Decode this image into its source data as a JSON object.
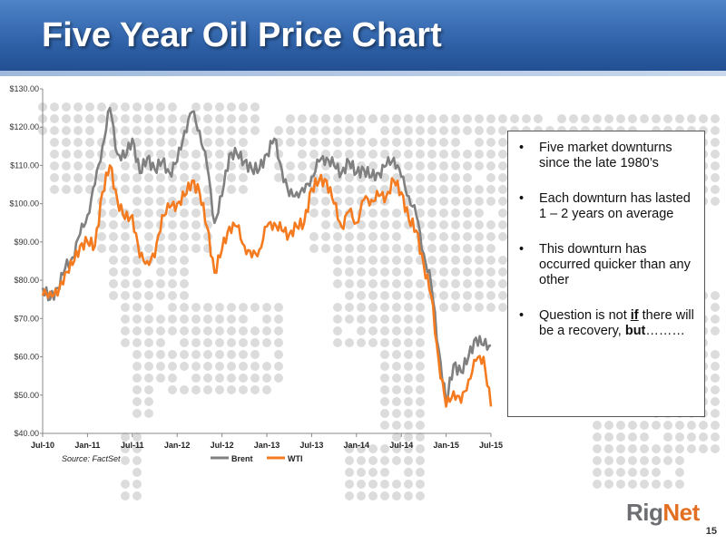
{
  "slide": {
    "title": "Five Year Oil Price Chart",
    "page_number": "15",
    "source": "Source:  FactSet",
    "logo": {
      "rig": "Rig",
      "net": "Net"
    }
  },
  "bullets": {
    "b1": "Five market downturns since the late 1980’s",
    "b2": "Each downturn has lasted 1 – 2 years on average",
    "b3": "This downturn has occurred quicker than any other",
    "b4_pre": "Question is not ",
    "b4_em": "if",
    "b4_mid": " there will be a recovery, ",
    "b4_bold": "but",
    "b4_end": "………"
  },
  "chart_data": {
    "type": "line",
    "title": "",
    "xlabel": "",
    "ylabel": "",
    "ylim": [
      40,
      130
    ],
    "y_ticks": [
      "$130.00",
      "$120.00",
      "$110.00",
      "$100.00",
      "$90.00",
      "$80.00",
      "$70.00",
      "$60.00",
      "$50.00",
      "$40.00"
    ],
    "x_ticks": [
      "Jul-10",
      "Jan-11",
      "Jul-11",
      "Jan-12",
      "Jul-12",
      "Jan-13",
      "Jul-13",
      "Jan-14",
      "Jul-14",
      "Jan-15",
      "Jul-15"
    ],
    "legend_position": "bottom",
    "series": [
      {
        "name": "Brent",
        "color": "#808080",
        "points": [
          [
            "Jul-10",
            78
          ],
          [
            "Aug-10",
            75
          ],
          [
            "Sep-10",
            78
          ],
          [
            "Oct-10",
            83
          ],
          [
            "Nov-10",
            86
          ],
          [
            "Dec-10",
            92
          ],
          [
            "Jan-11",
            97
          ],
          [
            "Feb-11",
            105
          ],
          [
            "Mar-11",
            115
          ],
          [
            "Apr-11",
            125
          ],
          [
            "May-11",
            113
          ],
          [
            "Jun-11",
            112
          ],
          [
            "Jul-11",
            117
          ],
          [
            "Aug-11",
            108
          ],
          [
            "Sep-11",
            112
          ],
          [
            "Oct-11",
            109
          ],
          [
            "Nov-11",
            111
          ],
          [
            "Dec-11",
            108
          ],
          [
            "Jan-12",
            111
          ],
          [
            "Feb-12",
            119
          ],
          [
            "Mar-12",
            124
          ],
          [
            "Apr-12",
            119
          ],
          [
            "May-12",
            110
          ],
          [
            "Jun-12",
            95
          ],
          [
            "Jul-12",
            102
          ],
          [
            "Aug-12",
            113
          ],
          [
            "Sep-12",
            113
          ],
          [
            "Oct-12",
            111
          ],
          [
            "Nov-12",
            109
          ],
          [
            "Dec-12",
            109
          ],
          [
            "Jan-13",
            113
          ],
          [
            "Feb-13",
            117
          ],
          [
            "Mar-13",
            109
          ],
          [
            "Apr-13",
            102
          ],
          [
            "May-13",
            103
          ],
          [
            "Jun-13",
            103
          ],
          [
            "Jul-13",
            107
          ],
          [
            "Aug-13",
            111
          ],
          [
            "Sep-13",
            112
          ],
          [
            "Oct-13",
            110
          ],
          [
            "Nov-13",
            108
          ],
          [
            "Dec-13",
            111
          ],
          [
            "Jan-14",
            108
          ],
          [
            "Feb-14",
            109
          ],
          [
            "Mar-14",
            107
          ],
          [
            "Apr-14",
            108
          ],
          [
            "May-14",
            110
          ],
          [
            "Jun-14",
            112
          ],
          [
            "Jul-14",
            107
          ],
          [
            "Aug-14",
            102
          ],
          [
            "Sep-14",
            97
          ],
          [
            "Oct-14",
            87
          ],
          [
            "Nov-14",
            79
          ],
          [
            "Dec-14",
            62
          ],
          [
            "Jan-15",
            48
          ],
          [
            "Feb-15",
            58
          ],
          [
            "Mar-15",
            56
          ],
          [
            "Apr-15",
            60
          ],
          [
            "May-15",
            65
          ],
          [
            "Jun-15",
            63
          ],
          [
            "Jul-15",
            63
          ]
        ]
      },
      {
        "name": "WTI",
        "color": "#f47b20",
        "points": [
          [
            "Jul-10",
            76
          ],
          [
            "Aug-10",
            77
          ],
          [
            "Sep-10",
            76
          ],
          [
            "Oct-10",
            82
          ],
          [
            "Nov-10",
            84
          ],
          [
            "Dec-10",
            89
          ],
          [
            "Jan-11",
            90
          ],
          [
            "Feb-11",
            89
          ],
          [
            "Mar-11",
            103
          ],
          [
            "Apr-11",
            110
          ],
          [
            "May-11",
            101
          ],
          [
            "Jun-11",
            96
          ],
          [
            "Jul-11",
            97
          ],
          [
            "Aug-11",
            86
          ],
          [
            "Sep-11",
            85
          ],
          [
            "Oct-11",
            86
          ],
          [
            "Nov-11",
            97
          ],
          [
            "Dec-11",
            99
          ],
          [
            "Jan-12",
            100
          ],
          [
            "Feb-12",
            102
          ],
          [
            "Mar-12",
            106
          ],
          [
            "Apr-12",
            103
          ],
          [
            "May-12",
            94
          ],
          [
            "Jun-12",
            82
          ],
          [
            "Jul-12",
            88
          ],
          [
            "Aug-12",
            94
          ],
          [
            "Sep-12",
            94
          ],
          [
            "Oct-12",
            89
          ],
          [
            "Nov-12",
            86
          ],
          [
            "Dec-12",
            88
          ],
          [
            "Jan-13",
            94
          ],
          [
            "Feb-13",
            95
          ],
          [
            "Mar-13",
            93
          ],
          [
            "Apr-13",
            92
          ],
          [
            "May-13",
            94
          ],
          [
            "Jun-13",
            95
          ],
          [
            "Jul-13",
            104
          ],
          [
            "Aug-13",
            106
          ],
          [
            "Sep-13",
            106
          ],
          [
            "Oct-13",
            100
          ],
          [
            "Nov-13",
            94
          ],
          [
            "Dec-13",
            98
          ],
          [
            "Jan-14",
            95
          ],
          [
            "Feb-14",
            101
          ],
          [
            "Mar-14",
            101
          ],
          [
            "Apr-14",
            102
          ],
          [
            "May-14",
            102
          ],
          [
            "Jun-14",
            106
          ],
          [
            "Jul-14",
            103
          ],
          [
            "Aug-14",
            96
          ],
          [
            "Sep-14",
            93
          ],
          [
            "Oct-14",
            84
          ],
          [
            "Nov-14",
            76
          ],
          [
            "Dec-14",
            59
          ],
          [
            "Jan-15",
            47
          ],
          [
            "Feb-15",
            51
          ],
          [
            "Mar-15",
            48
          ],
          [
            "Apr-15",
            54
          ],
          [
            "May-15",
            59
          ],
          [
            "Jun-15",
            60
          ],
          [
            "Jul-15",
            47
          ]
        ]
      }
    ]
  }
}
